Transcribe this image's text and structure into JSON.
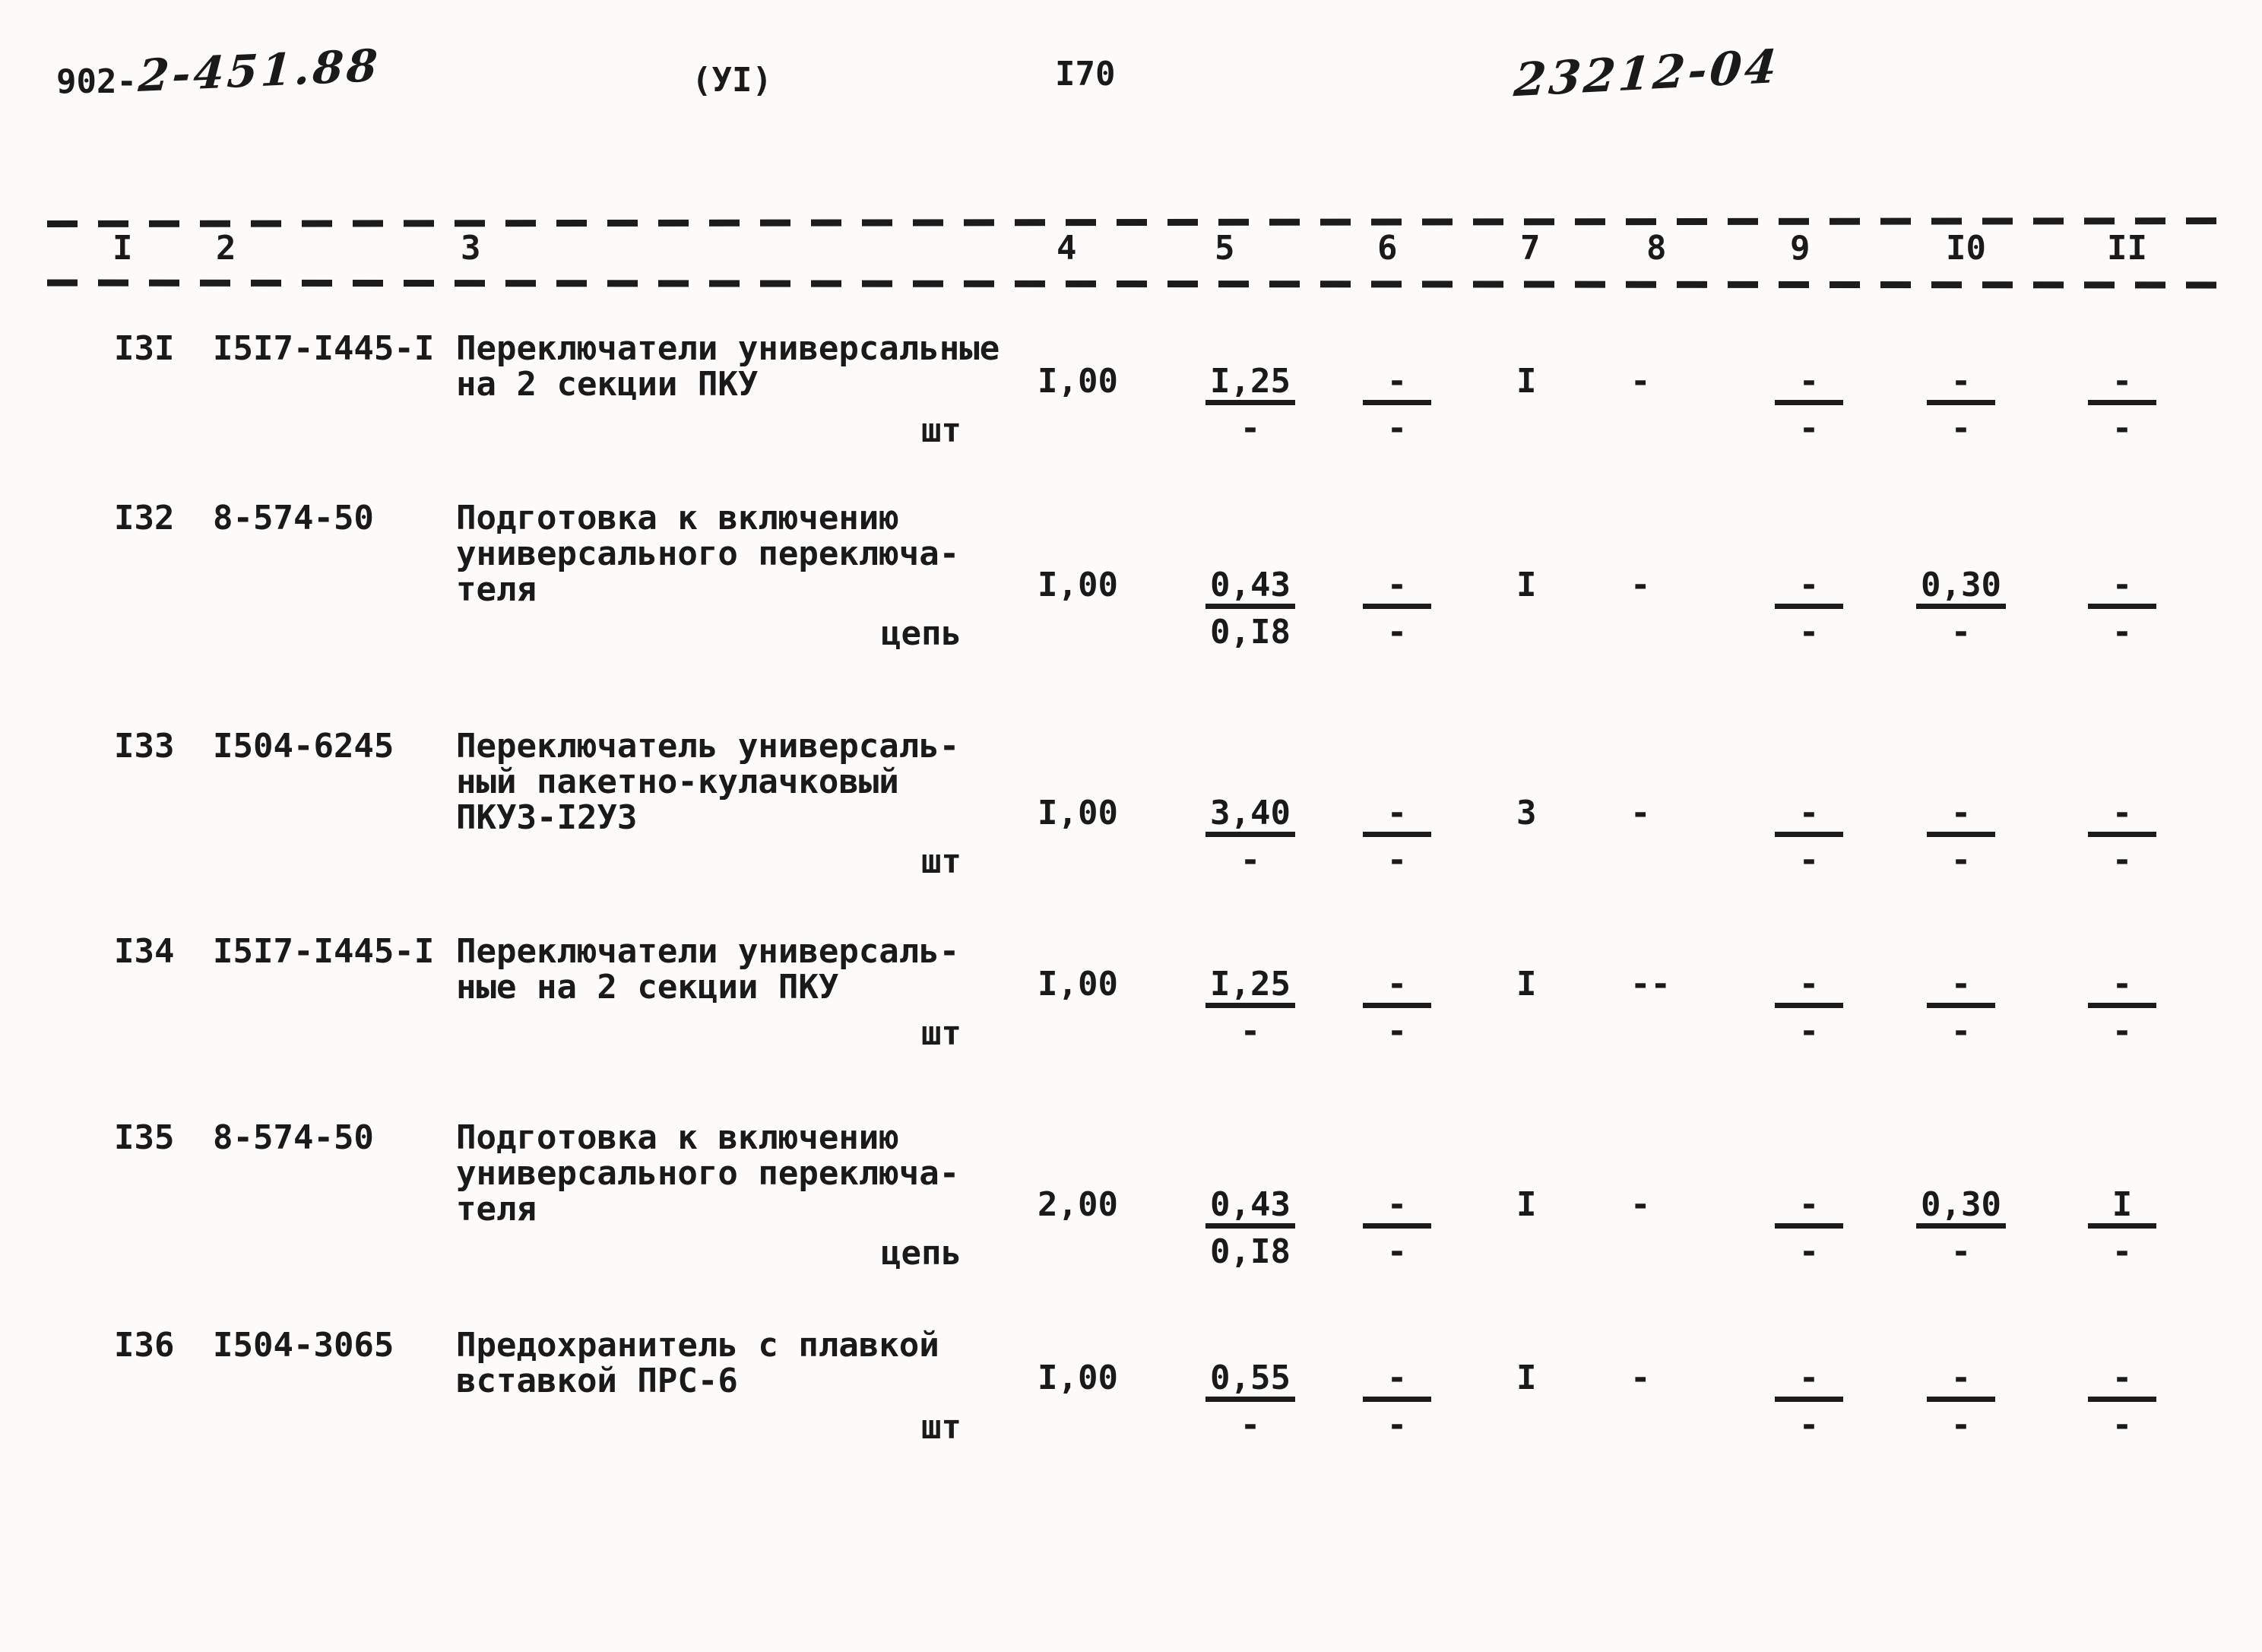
{
  "header": {
    "doc_number_typed": "902-",
    "doc_number_handwritten": "2-451.88",
    "section_label": "(УІ)",
    "page_number": "І70",
    "handwritten_stamp": "23212-04"
  },
  "table": {
    "columns": [
      "І",
      "2",
      "3",
      "4",
      "5",
      "6",
      "7",
      "8",
      "9",
      "І0",
      "ІІ"
    ],
    "rows": [
      {
        "num": "І3І",
        "code": "І5І7-І445-І",
        "desc_lines": [
          "Переключатели универсальные",
          "на 2 секции ПКУ"
        ],
        "unit": "шт",
        "c4": "І,00",
        "c5": {
          "top": "І,25",
          "bot": "-"
        },
        "c6": {
          "top": "-",
          "bot": "-"
        },
        "c7": "І",
        "c8": "-",
        "c9": {
          "top": "-",
          "bot": "-"
        },
        "c10": {
          "top": "-",
          "bot": "-"
        },
        "c11": {
          "top": "-",
          "bot": "-"
        }
      },
      {
        "num": "І32",
        "code": "8-574-50",
        "desc_lines": [
          "Подготовка к включению",
          "универсального переключа-",
          "теля"
        ],
        "unit": "цепь",
        "c4": "І,00",
        "c5": {
          "top": "0,43",
          "bot": "0,І8"
        },
        "c6": {
          "top": "-",
          "bot": "-"
        },
        "c7": "І",
        "c8": "-",
        "c9": {
          "top": "-",
          "bot": "-"
        },
        "c10": {
          "top": "0,30",
          "bot": "-"
        },
        "c11": {
          "top": "-",
          "bot": "-"
        }
      },
      {
        "num": "І33",
        "code": "І504-6245",
        "desc_lines": [
          "Переключатель универсаль-",
          "ный пакетно-кулачковый",
          "ПКУЗ-І2УЗ"
        ],
        "unit": "шт",
        "c4": "І,00",
        "c5": {
          "top": "3,40",
          "bot": "-"
        },
        "c6": {
          "top": "-",
          "bot": "-"
        },
        "c7": "3",
        "c8": "-",
        "c9": {
          "top": "-",
          "bot": "-"
        },
        "c10": {
          "top": "-",
          "bot": "-"
        },
        "c11": {
          "top": "-",
          "bot": "-"
        }
      },
      {
        "num": "І34",
        "code": "І5І7-І445-І",
        "desc_lines": [
          "Переключатели универсаль-",
          "ные на 2 секции ПКУ"
        ],
        "unit": "шт",
        "c4": "І,00",
        "c5": {
          "top": "І,25",
          "bot": "-"
        },
        "c6": {
          "top": "-",
          "bot": "-"
        },
        "c7": "І",
        "c8": "--",
        "c9": {
          "top": "-",
          "bot": "-"
        },
        "c10": {
          "top": "-",
          "bot": "-"
        },
        "c11": {
          "top": "-",
          "bot": "-"
        }
      },
      {
        "num": "І35",
        "code": "8-574-50",
        "desc_lines": [
          "Подготовка к включению",
          "универсального переключа-",
          "теля"
        ],
        "unit": "цепь",
        "c4": "2,00",
        "c5": {
          "top": "0,43",
          "bot": "0,І8"
        },
        "c6": {
          "top": "-",
          "bot": "-"
        },
        "c7": "І",
        "c8": "-",
        "c9": {
          "top": "-",
          "bot": "-"
        },
        "c10": {
          "top": "0,30",
          "bot": "-"
        },
        "c11": {
          "top": "І",
          "bot": "-"
        }
      },
      {
        "num": "І36",
        "code": "І504-3065",
        "desc_lines": [
          "Предохранитель с плавкой",
          "вставкой ПРС-6"
        ],
        "unit": "шт",
        "c4": "І,00",
        "c5": {
          "top": "0,55",
          "bot": "-"
        },
        "c6": {
          "top": "-",
          "bot": "-"
        },
        "c7": "І",
        "c8": "-",
        "c9": {
          "top": "-",
          "bot": "-"
        },
        "c10": {
          "top": "-",
          "bot": "-"
        },
        "c11": {
          "top": "-",
          "bot": "-"
        }
      }
    ]
  }
}
